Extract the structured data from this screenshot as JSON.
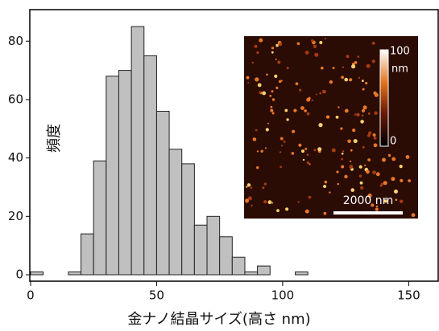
{
  "chart_data": {
    "type": "histogram",
    "x_label": "金ナノ結晶サイズ(高さ nm)",
    "y_label": "頻度",
    "bins": [
      0,
      5,
      10,
      15,
      20,
      25,
      30,
      35,
      40,
      45,
      50,
      55,
      60,
      65,
      70,
      75,
      80,
      85,
      90,
      95,
      100,
      105,
      110,
      115,
      120,
      125,
      130,
      135,
      140,
      145,
      150,
      155,
      160
    ],
    "values": [
      1,
      0,
      0,
      1,
      14,
      39,
      68,
      70,
      85,
      75,
      56,
      43,
      38,
      17,
      20,
      13,
      6,
      1,
      3,
      0,
      0,
      1,
      0,
      0,
      0,
      0,
      0,
      0,
      0,
      0,
      0,
      0
    ],
    "color": "#c0c0c0",
    "xlim": [
      -0.3,
      161.7
    ],
    "xticks": [
      0,
      50,
      100,
      150
    ],
    "ylim": [
      -2.2,
      90.8
    ],
    "yticks": [
      0,
      20,
      40,
      60,
      80
    ],
    "annotations": [
      "100",
      "nm",
      "0",
      "2000 nm"
    ]
  }
}
